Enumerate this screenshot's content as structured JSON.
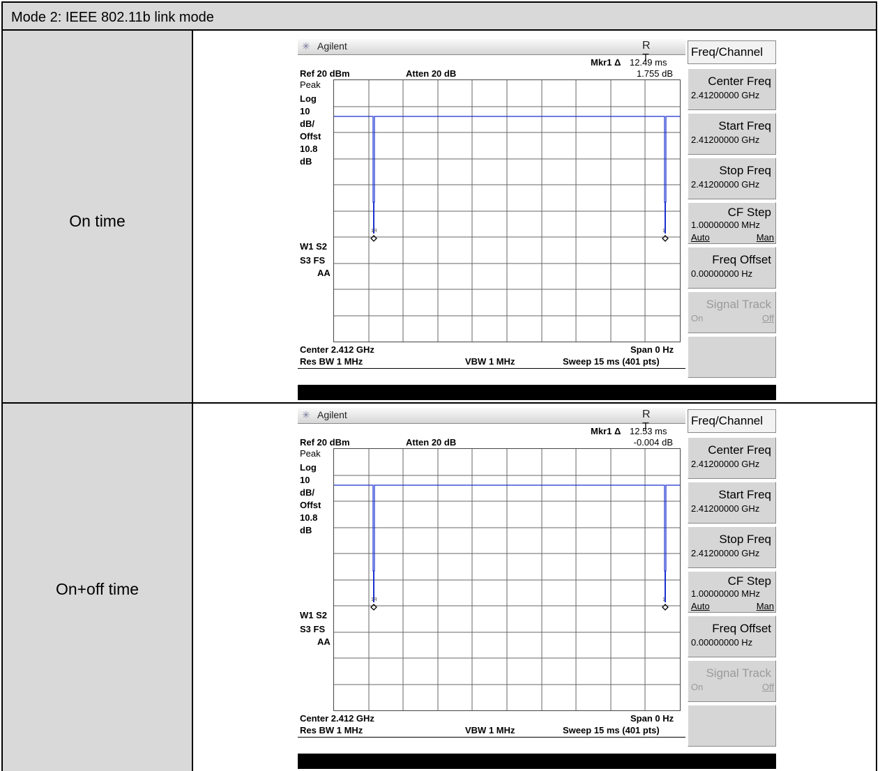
{
  "header": {
    "title": "Mode 2: IEEE 802.11b link mode"
  },
  "rows": [
    {
      "label": "On time",
      "analyzer": {
        "brand": "Agilent",
        "rt": "R T",
        "marker_label": "Mkr1 Δ",
        "marker_time": "12.49 ms",
        "marker_level": "1.755 dB",
        "ref": "Ref 20 dBm",
        "atten": "Atten 20 dB",
        "left_labels": [
          "Peak",
          "Log",
          "10",
          "dB/",
          "Offst",
          "10.8",
          "dB"
        ],
        "w1s2": "W1 S2",
        "s3fs": "S3 FS",
        "aa": "AA",
        "center": "Center 2.412 GHz",
        "span": "Span 0 Hz",
        "res_bw": "Res BW 1 MHz",
        "vbw": "VBW 1 MHz",
        "sweep": "Sweep 15 ms (401 pts)",
        "marker_tag1": "1R",
        "marker_tag2": "1"
      }
    },
    {
      "label": "On+off time",
      "analyzer": {
        "brand": "Agilent",
        "rt": "R T",
        "marker_label": "Mkr1 Δ",
        "marker_time": "12.53 ms",
        "marker_level": "-0.004 dB",
        "ref": "Ref 20 dBm",
        "atten": "Atten 20 dB",
        "left_labels": [
          "Peak",
          "Log",
          "10",
          "dB/",
          "Offst",
          "10.8",
          "dB"
        ],
        "w1s2": "W1 S2",
        "s3fs": "S3 FS",
        "aa": "AA",
        "center": "Center 2.412 GHz",
        "span": "Span 0 Hz",
        "res_bw": "Res BW 1 MHz",
        "vbw": "VBW 1 MHz",
        "sweep": "Sweep 15 ms (401 pts)",
        "marker_tag1": "1R",
        "marker_tag2": "1"
      }
    }
  ],
  "softkeys": {
    "menu_title": "Freq/Channel",
    "center_freq": {
      "label": "Center Freq",
      "value": "2.41200000 GHz"
    },
    "start_freq": {
      "label": "Start Freq",
      "value": "2.41200000 GHz"
    },
    "stop_freq": {
      "label": "Stop Freq",
      "value": "2.41200000 GHz"
    },
    "cf_step": {
      "label": "CF Step",
      "value": "1.00000000 MHz",
      "opt_left": "Auto",
      "opt_right": "Man"
    },
    "freq_offset": {
      "label": "Freq Offset",
      "value": "0.00000000 Hz"
    },
    "signal_track": {
      "label": "Signal Track",
      "opt_left": "On",
      "opt_right": "Off"
    }
  },
  "colors": {
    "trace": "#1a2fd0",
    "cell_bg": "#d9d9d9"
  }
}
